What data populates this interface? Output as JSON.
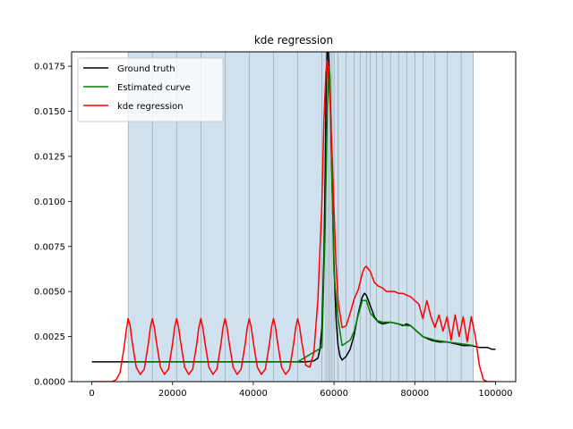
{
  "chart_data": {
    "type": "line",
    "title": "kde regression",
    "xlabel": "",
    "ylabel": "",
    "xlim": [
      -5000,
      105000
    ],
    "ylim": [
      0,
      0.0183
    ],
    "x_ticks": [
      0,
      20000,
      40000,
      60000,
      80000,
      100000
    ],
    "x_tick_labels": [
      "0",
      "20000",
      "40000",
      "60000",
      "80000",
      "100000"
    ],
    "y_ticks": [
      0,
      0.0025,
      0.005,
      0.0075,
      0.01,
      0.0125,
      0.015,
      0.0175
    ],
    "y_tick_labels": [
      "0.0000",
      "0.0025",
      "0.0050",
      "0.0075",
      "0.0100",
      "0.0125",
      "0.0150",
      "0.0175"
    ],
    "grid": false,
    "legend_position": "top-left",
    "shaded_region": {
      "x_start": 9000,
      "x_end": 94500,
      "color": "#cfe0ee"
    },
    "bin_edges": [
      9000,
      15000,
      21000,
      27000,
      33000,
      39000,
      45000,
      51000,
      57000,
      58000,
      58500,
      59000,
      59500,
      60000,
      61000,
      63000,
      65000,
      66500,
      68000,
      69000,
      70500,
      72000,
      74000,
      76000,
      78000,
      80000,
      82000,
      85000,
      88000,
      91500,
      94500
    ],
    "series": [
      {
        "name": "Ground truth",
        "color": "#000000",
        "x": [
          0,
          50000,
          53000,
          55000,
          56000,
          56500,
          57000,
          57500,
          57800,
          58000,
          58300,
          58600,
          59000,
          59500,
          60000,
          60500,
          61000,
          61500,
          62000,
          63000,
          64000,
          65000,
          66000,
          67000,
          67500,
          68000,
          69000,
          70000,
          71000,
          72000,
          74000,
          76000,
          77000,
          78000,
          79000,
          80000,
          82000,
          84000,
          86000,
          88000,
          90000,
          92000,
          94000,
          96000,
          98000,
          99000,
          100000
        ],
        "y": [
          0.0011,
          0.0011,
          0.0011,
          0.00115,
          0.0013,
          0.0018,
          0.003,
          0.007,
          0.0115,
          0.0155,
          0.0183,
          0.0183,
          0.0165,
          0.011,
          0.0065,
          0.0035,
          0.002,
          0.0014,
          0.0012,
          0.0014,
          0.0018,
          0.0026,
          0.0038,
          0.0047,
          0.0049,
          0.0048,
          0.0042,
          0.0036,
          0.0033,
          0.0032,
          0.0033,
          0.0032,
          0.0031,
          0.0032,
          0.0031,
          0.0029,
          0.0025,
          0.0023,
          0.0022,
          0.0022,
          0.0021,
          0.002,
          0.002,
          0.0019,
          0.0019,
          0.0018,
          0.0018
        ]
      },
      {
        "name": "Estimated curve",
        "color": "#008000",
        "x": [
          9000,
          15000,
          21000,
          27000,
          33000,
          39000,
          45000,
          51000,
          54000,
          57000,
          57800,
          58300,
          58700,
          59000,
          59500,
          60000,
          61000,
          62000,
          64000,
          65000,
          66000,
          67000,
          68000,
          69000,
          70500,
          72000,
          74000,
          76000,
          78000,
          79000,
          80000,
          82000,
          85000,
          88000,
          91500,
          94500
        ],
        "y": [
          0.0011,
          0.0011,
          0.0011,
          0.0011,
          0.0011,
          0.0011,
          0.0011,
          0.0011,
          0.0015,
          0.0019,
          0.0085,
          0.0148,
          0.0175,
          0.017,
          0.011,
          0.006,
          0.0035,
          0.002,
          0.0023,
          0.0028,
          0.0037,
          0.0045,
          0.0045,
          0.0038,
          0.0034,
          0.0033,
          0.0033,
          0.0032,
          0.0031,
          0.0031,
          0.0029,
          0.0025,
          0.0023,
          0.0022,
          0.0021,
          0.002
        ]
      },
      {
        "name": "kde regression",
        "color": "#ff0000",
        "x": [
          0,
          5000,
          6000,
          7000,
          8000,
          8500,
          9000,
          9500,
          10000,
          11000,
          12000,
          13000,
          14000,
          14500,
          15000,
          15500,
          16000,
          17000,
          18000,
          19000,
          20000,
          20500,
          21000,
          21500,
          22000,
          23000,
          24000,
          25000,
          26000,
          26500,
          27000,
          27500,
          28000,
          29000,
          30000,
          31000,
          32000,
          32500,
          33000,
          33500,
          34000,
          35000,
          36000,
          37000,
          38000,
          38500,
          39000,
          39500,
          40000,
          41000,
          42000,
          43000,
          44000,
          44500,
          45000,
          45500,
          46000,
          47000,
          48000,
          49000,
          50000,
          50500,
          51000,
          51500,
          52000,
          53000,
          54000,
          55000,
          56000,
          57000,
          57500,
          58000,
          58300,
          58600,
          59000,
          59500,
          60000,
          60500,
          61000,
          62000,
          63000,
          64000,
          65000,
          66000,
          67000,
          67500,
          68000,
          69000,
          70000,
          71000,
          72000,
          73000,
          74000,
          75000,
          76000,
          77000,
          78000,
          79000,
          80000,
          81000,
          82000,
          83000,
          84000,
          85000,
          86000,
          87000,
          88000,
          89000,
          90000,
          91000,
          92000,
          93000,
          94000,
          95000,
          96000,
          97000,
          98000,
          100000
        ],
        "y": [
          0,
          0,
          0.0001,
          0.0005,
          0.0019,
          0.0028,
          0.0035,
          0.0031,
          0.0022,
          0.0008,
          0.0004,
          0.0007,
          0.0021,
          0.003,
          0.0035,
          0.003,
          0.0022,
          0.0008,
          0.0004,
          0.0007,
          0.0021,
          0.003,
          0.0035,
          0.003,
          0.0022,
          0.0008,
          0.0004,
          0.0007,
          0.0021,
          0.003,
          0.0035,
          0.003,
          0.0022,
          0.0008,
          0.0004,
          0.0007,
          0.0021,
          0.003,
          0.0035,
          0.003,
          0.0022,
          0.0008,
          0.0004,
          0.0007,
          0.0021,
          0.003,
          0.0035,
          0.003,
          0.0022,
          0.0008,
          0.0004,
          0.0007,
          0.0021,
          0.003,
          0.0035,
          0.003,
          0.0022,
          0.0008,
          0.0004,
          0.0007,
          0.0021,
          0.003,
          0.0035,
          0.003,
          0.0022,
          0.0009,
          0.0008,
          0.0016,
          0.0045,
          0.01,
          0.0145,
          0.0172,
          0.0178,
          0.0172,
          0.0155,
          0.0128,
          0.0095,
          0.0065,
          0.0045,
          0.003,
          0.0031,
          0.0038,
          0.0046,
          0.0051,
          0.006,
          0.0063,
          0.0064,
          0.0061,
          0.0055,
          0.0053,
          0.0052,
          0.005,
          0.005,
          0.005,
          0.0049,
          0.0049,
          0.0048,
          0.0047,
          0.0045,
          0.0043,
          0.0035,
          0.0045,
          0.0036,
          0.003,
          0.0037,
          0.0028,
          0.0036,
          0.0023,
          0.0037,
          0.0025,
          0.0036,
          0.0022,
          0.0036,
          0.0025,
          0.0009,
          0.0001,
          0,
          0
        ]
      }
    ]
  }
}
